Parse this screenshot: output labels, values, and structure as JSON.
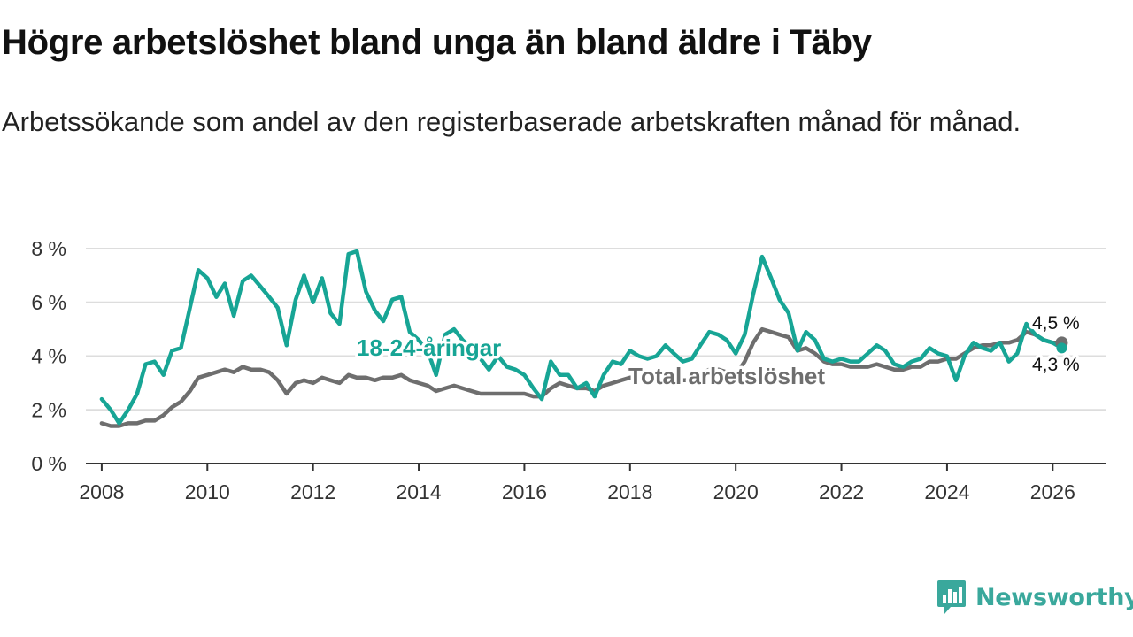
{
  "header": {
    "title": "Högre arbetslöshet bland unga än bland äldre i Täby",
    "subtitle": "Arbetssökande som andel av den registerbaserade arbetskraften månad för månad."
  },
  "brand": {
    "name": "Newsworthy",
    "icon": "bar-chart-icon",
    "color": "#3aa89c"
  },
  "colors": {
    "youth": "#17a595",
    "total": "#6e6e6e",
    "grid": "#dddddd",
    "axis": "#333333"
  },
  "chart_data": {
    "type": "line",
    "title": "Högre arbetslöshet bland unga än bland äldre i Täby",
    "xlabel": "",
    "ylabel": "",
    "xlim": [
      2007.7,
      2027.0
    ],
    "ylim": [
      0,
      8
    ],
    "y_ticks": [
      0,
      2,
      4,
      6,
      8
    ],
    "y_tick_labels": [
      "0 %",
      "2 %",
      "4 %",
      "6 %",
      "8 %"
    ],
    "x_ticks": [
      2008,
      2010,
      2012,
      2014,
      2016,
      2018,
      2020,
      2022,
      2024,
      2026
    ],
    "x_tick_labels": [
      "2008",
      "2010",
      "2012",
      "2014",
      "2016",
      "2018",
      "2020",
      "2022",
      "2024",
      "2026"
    ],
    "grid": true,
    "series": [
      {
        "name": "18-24-åringar",
        "label": "18-24-åringar",
        "end_label": "4,3 %",
        "points": [
          [
            2008.0,
            2.4
          ],
          [
            2008.17,
            2.0
          ],
          [
            2008.33,
            1.5
          ],
          [
            2008.5,
            2.0
          ],
          [
            2008.67,
            2.6
          ],
          [
            2008.83,
            3.7
          ],
          [
            2009.0,
            3.8
          ],
          [
            2009.17,
            3.3
          ],
          [
            2009.33,
            4.2
          ],
          [
            2009.5,
            4.3
          ],
          [
            2009.67,
            5.8
          ],
          [
            2009.83,
            7.2
          ],
          [
            2010.0,
            6.9
          ],
          [
            2010.17,
            6.2
          ],
          [
            2010.33,
            6.7
          ],
          [
            2010.5,
            5.5
          ],
          [
            2010.67,
            6.8
          ],
          [
            2010.83,
            7.0
          ],
          [
            2011.0,
            6.6
          ],
          [
            2011.17,
            6.2
          ],
          [
            2011.33,
            5.8
          ],
          [
            2011.5,
            4.4
          ],
          [
            2011.67,
            6.1
          ],
          [
            2011.83,
            7.0
          ],
          [
            2012.0,
            6.0
          ],
          [
            2012.17,
            6.9
          ],
          [
            2012.33,
            5.6
          ],
          [
            2012.5,
            5.2
          ],
          [
            2012.67,
            7.8
          ],
          [
            2012.83,
            7.9
          ],
          [
            2013.0,
            6.4
          ],
          [
            2013.17,
            5.7
          ],
          [
            2013.33,
            5.3
          ],
          [
            2013.5,
            6.1
          ],
          [
            2013.67,
            6.2
          ],
          [
            2013.83,
            4.9
          ],
          [
            2014.0,
            4.6
          ],
          [
            2014.17,
            4.2
          ],
          [
            2014.33,
            3.3
          ],
          [
            2014.5,
            4.8
          ],
          [
            2014.67,
            5.0
          ],
          [
            2014.83,
            4.6
          ],
          [
            2015.0,
            4.3
          ],
          [
            2015.17,
            3.9
          ],
          [
            2015.33,
            3.5
          ],
          [
            2015.5,
            4.0
          ],
          [
            2015.67,
            3.6
          ],
          [
            2015.83,
            3.5
          ],
          [
            2016.0,
            3.3
          ],
          [
            2016.17,
            2.8
          ],
          [
            2016.33,
            2.4
          ],
          [
            2016.5,
            3.8
          ],
          [
            2016.67,
            3.3
          ],
          [
            2016.83,
            3.3
          ],
          [
            2017.0,
            2.8
          ],
          [
            2017.17,
            3.0
          ],
          [
            2017.33,
            2.5
          ],
          [
            2017.5,
            3.3
          ],
          [
            2017.67,
            3.8
          ],
          [
            2017.83,
            3.7
          ],
          [
            2018.0,
            4.2
          ],
          [
            2018.17,
            4.0
          ],
          [
            2018.33,
            3.9
          ],
          [
            2018.5,
            4.0
          ],
          [
            2018.67,
            4.4
          ],
          [
            2018.83,
            4.1
          ],
          [
            2019.0,
            3.8
          ],
          [
            2019.17,
            3.9
          ],
          [
            2019.33,
            4.4
          ],
          [
            2019.5,
            4.9
          ],
          [
            2019.67,
            4.8
          ],
          [
            2019.83,
            4.6
          ],
          [
            2020.0,
            4.1
          ],
          [
            2020.17,
            4.8
          ],
          [
            2020.33,
            6.3
          ],
          [
            2020.5,
            7.7
          ],
          [
            2020.67,
            6.9
          ],
          [
            2020.83,
            6.1
          ],
          [
            2021.0,
            5.6
          ],
          [
            2021.17,
            4.2
          ],
          [
            2021.33,
            4.9
          ],
          [
            2021.5,
            4.6
          ],
          [
            2021.67,
            3.9
          ],
          [
            2021.83,
            3.8
          ],
          [
            2022.0,
            3.9
          ],
          [
            2022.17,
            3.8
          ],
          [
            2022.33,
            3.8
          ],
          [
            2022.5,
            4.1
          ],
          [
            2022.67,
            4.4
          ],
          [
            2022.83,
            4.2
          ],
          [
            2023.0,
            3.7
          ],
          [
            2023.17,
            3.6
          ],
          [
            2023.33,
            3.8
          ],
          [
            2023.5,
            3.9
          ],
          [
            2023.67,
            4.3
          ],
          [
            2023.83,
            4.1
          ],
          [
            2024.0,
            4.0
          ],
          [
            2024.17,
            3.1
          ],
          [
            2024.33,
            4.0
          ],
          [
            2024.5,
            4.5
          ],
          [
            2024.67,
            4.3
          ],
          [
            2024.83,
            4.2
          ],
          [
            2025.0,
            4.5
          ],
          [
            2025.17,
            3.8
          ],
          [
            2025.33,
            4.1
          ],
          [
            2025.5,
            5.2
          ],
          [
            2025.67,
            4.8
          ],
          [
            2025.83,
            4.6
          ],
          [
            2026.0,
            4.5
          ],
          [
            2026.17,
            4.3
          ]
        ]
      },
      {
        "name": "Total arbetslöshet",
        "label": "Total arbetslöshet",
        "end_label": "4,5 %",
        "points": [
          [
            2008.0,
            1.5
          ],
          [
            2008.17,
            1.4
          ],
          [
            2008.33,
            1.4
          ],
          [
            2008.5,
            1.5
          ],
          [
            2008.67,
            1.5
          ],
          [
            2008.83,
            1.6
          ],
          [
            2009.0,
            1.6
          ],
          [
            2009.17,
            1.8
          ],
          [
            2009.33,
            2.1
          ],
          [
            2009.5,
            2.3
          ],
          [
            2009.67,
            2.7
          ],
          [
            2009.83,
            3.2
          ],
          [
            2010.0,
            3.3
          ],
          [
            2010.17,
            3.4
          ],
          [
            2010.33,
            3.5
          ],
          [
            2010.5,
            3.4
          ],
          [
            2010.67,
            3.6
          ],
          [
            2010.83,
            3.5
          ],
          [
            2011.0,
            3.5
          ],
          [
            2011.17,
            3.4
          ],
          [
            2011.33,
            3.1
          ],
          [
            2011.5,
            2.6
          ],
          [
            2011.67,
            3.0
          ],
          [
            2011.83,
            3.1
          ],
          [
            2012.0,
            3.0
          ],
          [
            2012.17,
            3.2
          ],
          [
            2012.33,
            3.1
          ],
          [
            2012.5,
            3.0
          ],
          [
            2012.67,
            3.3
          ],
          [
            2012.83,
            3.2
          ],
          [
            2013.0,
            3.2
          ],
          [
            2013.17,
            3.1
          ],
          [
            2013.33,
            3.2
          ],
          [
            2013.5,
            3.2
          ],
          [
            2013.67,
            3.3
          ],
          [
            2013.83,
            3.1
          ],
          [
            2014.0,
            3.0
          ],
          [
            2014.17,
            2.9
          ],
          [
            2014.33,
            2.7
          ],
          [
            2014.5,
            2.8
          ],
          [
            2014.67,
            2.9
          ],
          [
            2014.83,
            2.8
          ],
          [
            2015.0,
            2.7
          ],
          [
            2015.17,
            2.6
          ],
          [
            2015.33,
            2.6
          ],
          [
            2015.5,
            2.6
          ],
          [
            2015.67,
            2.6
          ],
          [
            2015.83,
            2.6
          ],
          [
            2016.0,
            2.6
          ],
          [
            2016.17,
            2.5
          ],
          [
            2016.33,
            2.5
          ],
          [
            2016.5,
            2.8
          ],
          [
            2016.67,
            3.0
          ],
          [
            2016.83,
            2.9
          ],
          [
            2017.0,
            2.8
          ],
          [
            2017.17,
            2.8
          ],
          [
            2017.33,
            2.7
          ],
          [
            2017.5,
            2.9
          ],
          [
            2017.67,
            3.0
          ],
          [
            2017.83,
            3.1
          ],
          [
            2018.0,
            3.2
          ],
          [
            2018.17,
            3.2
          ],
          [
            2018.33,
            3.1
          ],
          [
            2018.5,
            3.2
          ],
          [
            2018.67,
            3.3
          ],
          [
            2018.83,
            3.2
          ],
          [
            2019.0,
            3.1
          ],
          [
            2019.17,
            3.1
          ],
          [
            2019.33,
            3.3
          ],
          [
            2019.5,
            3.5
          ],
          [
            2019.67,
            3.5
          ],
          [
            2019.83,
            3.4
          ],
          [
            2020.0,
            3.3
          ],
          [
            2020.17,
            3.8
          ],
          [
            2020.33,
            4.5
          ],
          [
            2020.5,
            5.0
          ],
          [
            2020.67,
            4.9
          ],
          [
            2020.83,
            4.8
          ],
          [
            2021.0,
            4.7
          ],
          [
            2021.17,
            4.2
          ],
          [
            2021.33,
            4.3
          ],
          [
            2021.5,
            4.1
          ],
          [
            2021.67,
            3.8
          ],
          [
            2021.83,
            3.7
          ],
          [
            2022.0,
            3.7
          ],
          [
            2022.17,
            3.6
          ],
          [
            2022.33,
            3.6
          ],
          [
            2022.5,
            3.6
          ],
          [
            2022.67,
            3.7
          ],
          [
            2022.83,
            3.6
          ],
          [
            2023.0,
            3.5
          ],
          [
            2023.17,
            3.5
          ],
          [
            2023.33,
            3.6
          ],
          [
            2023.5,
            3.6
          ],
          [
            2023.67,
            3.8
          ],
          [
            2023.83,
            3.8
          ],
          [
            2024.0,
            3.9
          ],
          [
            2024.17,
            3.9
          ],
          [
            2024.33,
            4.1
          ],
          [
            2024.5,
            4.3
          ],
          [
            2024.67,
            4.4
          ],
          [
            2024.83,
            4.4
          ],
          [
            2025.0,
            4.5
          ],
          [
            2025.17,
            4.5
          ],
          [
            2025.33,
            4.6
          ],
          [
            2025.5,
            4.9
          ],
          [
            2025.67,
            4.8
          ],
          [
            2025.83,
            4.6
          ],
          [
            2026.0,
            4.5
          ],
          [
            2026.17,
            4.5
          ]
        ]
      }
    ]
  }
}
